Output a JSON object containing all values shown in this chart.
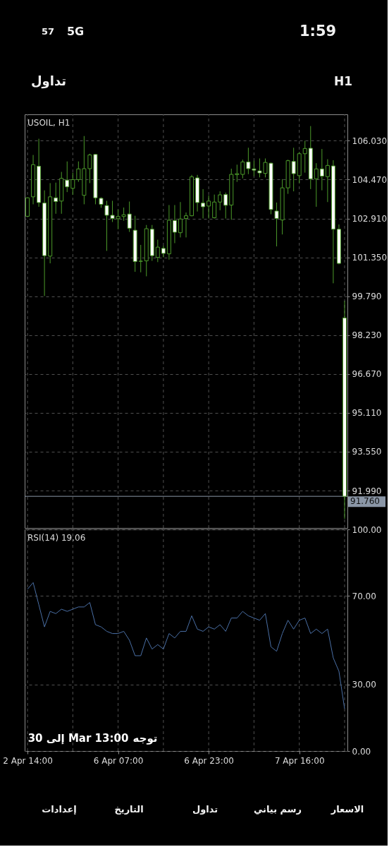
{
  "chart_data": [
    {
      "type": "other",
      "annotations": [
        "57",
        "5G",
        "1:59",
        "تداول",
        "H1"
      ]
    },
    {
      "type": "candlestick",
      "title": "USOIL, H1",
      "categories": [
        null,
        null,
        null,
        null,
        null,
        null,
        null,
        null,
        null,
        null,
        null,
        null,
        null,
        null,
        null,
        null,
        null,
        null,
        null,
        null,
        null,
        null,
        null,
        null,
        null,
        null,
        null,
        null,
        null,
        null,
        null,
        null,
        null,
        null,
        null,
        null,
        null,
        null,
        null,
        null,
        null,
        null,
        null,
        null,
        null,
        null,
        null,
        null,
        null,
        null,
        null,
        null,
        null,
        null,
        null,
        null,
        null
      ],
      "ohlc": [
        [
          103.0,
          103.76,
          102.98,
          103.74
        ],
        [
          103.78,
          105.46,
          103.48,
          105.07
        ],
        [
          105.01,
          106.11,
          103.38,
          103.55
        ],
        [
          103.53,
          104.04,
          99.8,
          101.42
        ],
        [
          101.4,
          104.33,
          101.11,
          103.78
        ],
        [
          103.74,
          104.35,
          103.1,
          103.59
        ],
        [
          103.61,
          104.78,
          103.1,
          104.52
        ],
        [
          104.45,
          105.2,
          103.97,
          104.18
        ],
        [
          104.12,
          104.75,
          103.86,
          104.47
        ],
        [
          104.47,
          105.2,
          104.38,
          104.9
        ],
        [
          103.84,
          106.22,
          103.48,
          104.91
        ],
        [
          104.91,
          105.51,
          104.33,
          105.46
        ],
        [
          105.48,
          105.5,
          103.48,
          103.74
        ],
        [
          103.72,
          103.76,
          103.34,
          103.48
        ],
        [
          103.43,
          103.62,
          101.61,
          103.04
        ],
        [
          103.04,
          103.62,
          102.77,
          102.91
        ],
        [
          102.9,
          103.27,
          102.48,
          102.99
        ],
        [
          102.99,
          103.35,
          102.82,
          103.06
        ],
        [
          103.09,
          103.59,
          102.37,
          102.52
        ],
        [
          102.44,
          103.02,
          100.77,
          101.18
        ],
        [
          101.19,
          101.85,
          100.75,
          101.2
        ],
        [
          101.21,
          102.65,
          100.59,
          102.5
        ],
        [
          102.48,
          102.65,
          101.21,
          101.42
        ],
        [
          101.35,
          102.06,
          101.16,
          101.76
        ],
        [
          101.71,
          101.82,
          101.35,
          101.51
        ],
        [
          101.49,
          103.45,
          101.26,
          102.84
        ],
        [
          102.83,
          103.45,
          101.92,
          102.36
        ],
        [
          102.34,
          103.57,
          102.15,
          102.89
        ],
        [
          102.91,
          103.15,
          102.15,
          103.02
        ],
        [
          103.02,
          104.66,
          103.0,
          104.58
        ],
        [
          104.54,
          104.66,
          103.19,
          103.55
        ],
        [
          103.53,
          104.09,
          102.91,
          103.38
        ],
        [
          103.41,
          103.84,
          102.91,
          103.61
        ],
        [
          102.94,
          103.87,
          102.91,
          103.57
        ],
        [
          103.57,
          104.0,
          103.24,
          103.86
        ],
        [
          103.87,
          103.95,
          102.91,
          103.44
        ],
        [
          103.45,
          104.91,
          102.86,
          104.68
        ],
        [
          104.67,
          105.07,
          104.38,
          104.71
        ],
        [
          104.68,
          105.27,
          104.52,
          105.18
        ],
        [
          105.18,
          105.75,
          104.69,
          104.91
        ],
        [
          104.9,
          105.23,
          104.61,
          104.85
        ],
        [
          104.82,
          105.32,
          104.56,
          104.74
        ],
        [
          104.72,
          105.32,
          104.56,
          105.16
        ],
        [
          105.13,
          105.15,
          103.08,
          103.27
        ],
        [
          103.21,
          103.55,
          101.79,
          102.91
        ],
        [
          102.85,
          104.49,
          102.27,
          104.14
        ],
        [
          104.14,
          105.27,
          103.9,
          105.23
        ],
        [
          105.2,
          105.75,
          104.0,
          104.71
        ],
        [
          104.63,
          105.58,
          104.33,
          105.51
        ],
        [
          105.51,
          106.03,
          104.75,
          105.72
        ],
        [
          105.73,
          106.62,
          104.09,
          104.5
        ],
        [
          104.5,
          105.13,
          103.38,
          104.9
        ],
        [
          104.9,
          105.7,
          104.04,
          104.61
        ],
        [
          104.59,
          105.29,
          103.57,
          105.04
        ],
        [
          105.02,
          105.25,
          100.31,
          102.48
        ],
        [
          102.48,
          102.67,
          101.07,
          101.11
        ],
        [
          98.92,
          99.6,
          90.86,
          91.76
        ]
      ],
      "color": "#4c9a2a",
      "colors": [
        "#000000",
        "#000000",
        "#ffffff",
        "#ffffff",
        "#000000",
        "#ffffff",
        "#000000",
        "#ffffff",
        "#000000",
        "#000000",
        "#000000",
        "#000000",
        "#ffffff",
        "#ffffff",
        "#ffffff",
        "#ffffff",
        "#000000",
        "#000000",
        "#ffffff",
        "#ffffff",
        "#000000",
        "#000000",
        "#ffffff",
        "#000000",
        "#ffffff",
        "#000000",
        "#ffffff",
        "#000000",
        "#000000",
        "#000000",
        "#ffffff",
        "#ffffff",
        "#000000",
        "#000000",
        "#000000",
        "#ffffff",
        "#000000",
        "#000000",
        "#000000",
        "#ffffff",
        "#ffffff",
        "#ffffff",
        "#000000",
        "#ffffff",
        "#ffffff",
        "#000000",
        "#000000",
        "#ffffff",
        "#000000",
        "#000000",
        "#ffffff",
        "#000000",
        "#ffffff",
        "#000000",
        "#ffffff",
        "#ffffff",
        "#ffffff"
      ],
      "ylim": [
        90.49,
        107.09
      ],
      "yticks": [
        {
          "value": 106.03,
          "label": "106.030"
        },
        {
          "value": 104.47,
          "label": "104.470"
        },
        {
          "value": 102.91,
          "label": "102.910"
        },
        {
          "value": 101.35,
          "label": "101.350"
        },
        {
          "value": 99.79,
          "label": "99.790"
        },
        {
          "value": 98.23,
          "label": "98.230"
        },
        {
          "value": 96.67,
          "label": "96.670"
        },
        {
          "value": 95.11,
          "label": "95.110"
        },
        {
          "value": 93.55,
          "label": "93.550"
        },
        {
          "value": 91.99,
          "label": "91.990"
        }
      ],
      "grid": true,
      "tick_labels": "y",
      "ref_lines": [
        {
          "axis": "y",
          "value": 91.76,
          "label": "91.760",
          "color": "#8a96a6"
        }
      ]
    },
    {
      "type": "line",
      "title": "RSI(14) 19.06",
      "categories": [
        "2 Apr 14:00",
        null,
        null,
        null,
        null,
        null,
        null,
        null,
        null,
        null,
        null,
        null,
        null,
        null,
        null,
        null,
        "6 Apr 07:00",
        null,
        null,
        null,
        null,
        null,
        null,
        null,
        null,
        null,
        null,
        null,
        null,
        null,
        null,
        null,
        "6 Apr 23:00",
        null,
        null,
        null,
        null,
        null,
        null,
        null,
        null,
        null,
        null,
        null,
        null,
        null,
        null,
        null,
        "7 Apr 16:00",
        null,
        null,
        null,
        null,
        null,
        null,
        null,
        null
      ],
      "series": [
        {
          "color": "#4a6fa5",
          "values": [
            73,
            76,
            66,
            56,
            63,
            62,
            64,
            63,
            64,
            65,
            65,
            67,
            57,
            56,
            54,
            53,
            53,
            54,
            50,
            43,
            43,
            51,
            46,
            48,
            46,
            53,
            51,
            54,
            54,
            61,
            55,
            54,
            56,
            55,
            57,
            54,
            60,
            60,
            63,
            61,
            60,
            59,
            62,
            47,
            45,
            53,
            59,
            55,
            59,
            60,
            53,
            55,
            53,
            55,
            42,
            36,
            19.06
          ]
        }
      ],
      "ylim": [
        0,
        100
      ],
      "yticks": [
        {
          "value": 100,
          "label": "100.00"
        },
        {
          "value": 70,
          "label": "70.00"
        },
        {
          "value": 30,
          "label": "30.00"
        },
        {
          "value": 0,
          "label": "0.00"
        }
      ],
      "grid": true,
      "annotations": [
        "توجه",
        "إلى 30 Mar 13:00"
      ]
    },
    {
      "type": "other",
      "annotations": [
        "إعدادات",
        "التاريخ",
        "تداول",
        "رسم بياني",
        "الاسعار"
      ]
    }
  ]
}
